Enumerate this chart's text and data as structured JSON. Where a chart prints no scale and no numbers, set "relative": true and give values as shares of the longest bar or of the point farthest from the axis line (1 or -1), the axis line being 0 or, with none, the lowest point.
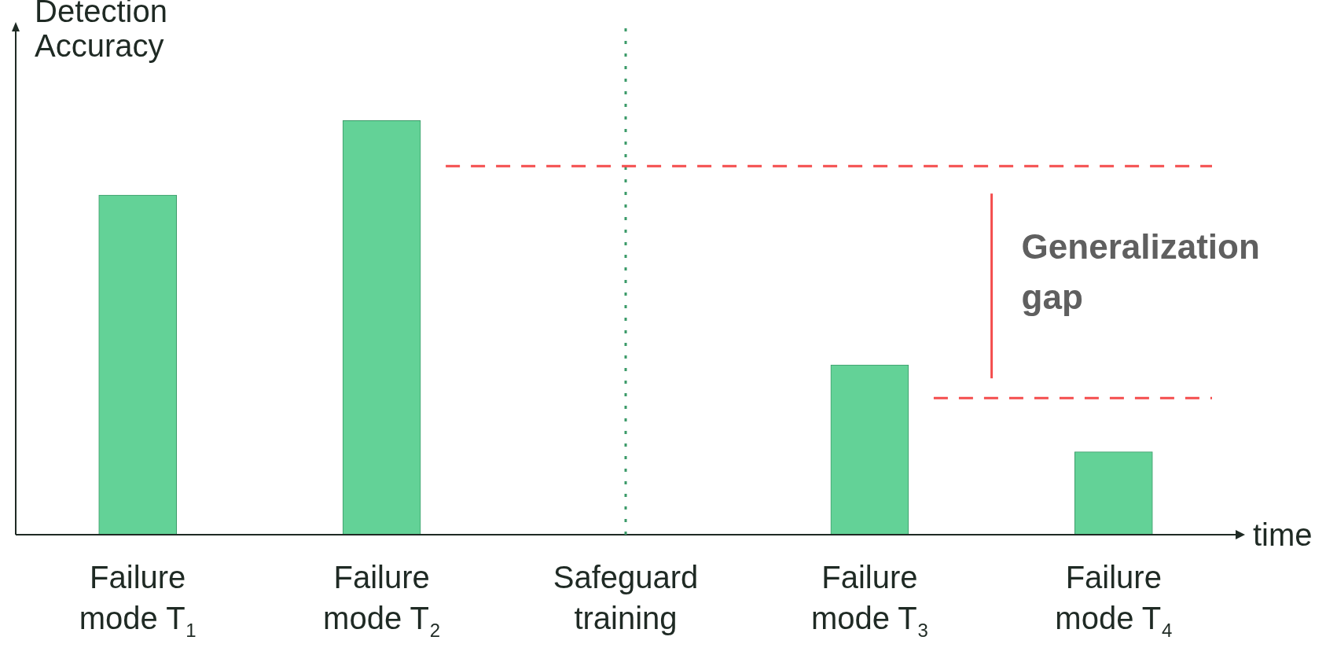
{
  "chart_data": {
    "type": "bar",
    "relative": true,
    "ylabel": "Detection Accuracy",
    "xlabel": "time",
    "categories": [
      "Failure mode T$_{1}$",
      "Failure mode T$_{2}$",
      "Safeguard training",
      "Failure mode T$_{3}$",
      "Failure mode T$_{4}$"
    ],
    "values": [
      0.82,
      1,
      null,
      0.41,
      0.2
    ],
    "color": "#63d297",
    "ref_lines": [
      {
        "axis": "x",
        "value": "Safeguard training",
        "color": "#3a9a68",
        "line_style": "dotted"
      },
      {
        "axis": "y",
        "value": 0.89,
        "color": "#f44d4d",
        "line_style": "dashed"
      },
      {
        "axis": "y",
        "value": 0.33,
        "color": "#f44d4d",
        "line_style": "dashed"
      }
    ],
    "annotations": [
      "Generalization gap"
    ],
    "grid": false,
    "legend": false
  }
}
